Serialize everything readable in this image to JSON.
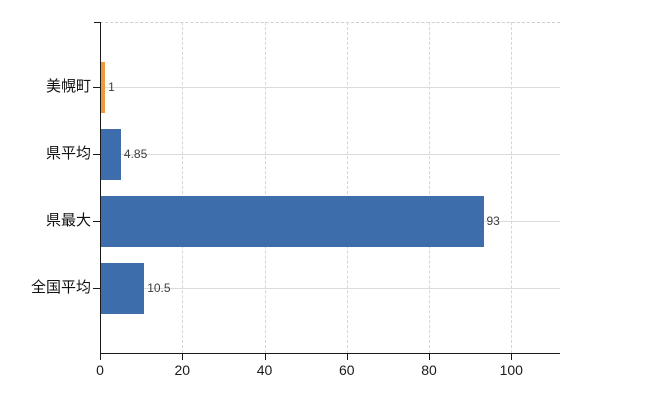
{
  "chart_data": {
    "type": "bar",
    "orientation": "horizontal",
    "title": "",
    "xlabel": "",
    "ylabel": "",
    "categories": [
      "美幌町",
      "県平均",
      "県最大",
      "全国平均"
    ],
    "values": [
      1,
      4.85,
      93,
      10.5
    ],
    "value_labels": [
      "1",
      "4.85",
      "93",
      "10.5"
    ],
    "bar_colors": [
      "#ee9c3b",
      "#3e6dab",
      "#3e6dab",
      "#3e6dab"
    ],
    "x_ticks": [
      0,
      20,
      40,
      60,
      80,
      100
    ],
    "x_tick_labels": [
      "0",
      "20",
      "40",
      "60",
      "80",
      "100"
    ],
    "xlim": [
      0,
      112
    ],
    "grid": "on",
    "legend": "none",
    "colors": {
      "background": "#ffffff",
      "axis": "#1a1a1a",
      "vertical_gridline": "#d6d6d6",
      "horizontal_gridline": "#dadcda",
      "plot_top_border": "#cfcfcf",
      "tick_label": "#1a1a1a",
      "value_label": "#3c3c3c",
      "orange_bar": "#ee9c3b",
      "blue_bar": "#3e6dab"
    }
  }
}
